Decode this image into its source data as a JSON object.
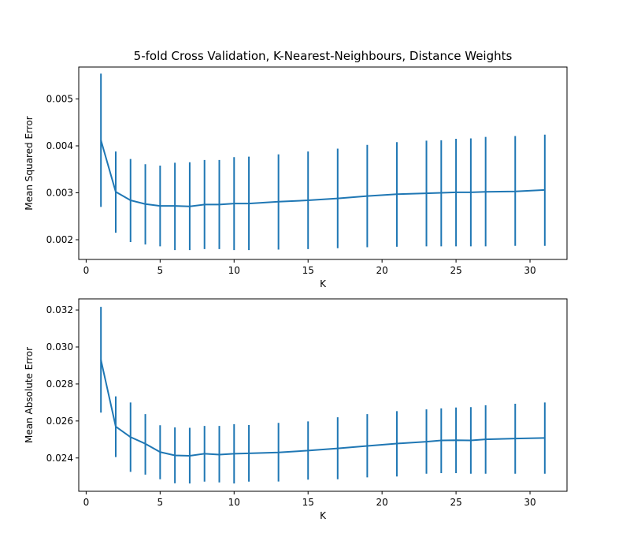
{
  "figure_title": "5-fold Cross Validation, K-Nearest-Neighbours, Distance Weights",
  "colors": {
    "series": "#1f77b4",
    "axes": "#000000",
    "background": "#ffffff"
  },
  "chart_data": [
    {
      "type": "line",
      "subtype": "errorbar",
      "title": "5-fold Cross Validation, K-Nearest-Neighbours, Distance Weights",
      "xlabel": "K",
      "ylabel": "Mean Squared Error",
      "xlim": [
        -0.5,
        32.5
      ],
      "ylim": [
        0.00158,
        0.00568
      ],
      "xticks": [
        0,
        5,
        10,
        15,
        20,
        25,
        30
      ],
      "xtick_labels": [
        "0",
        "5",
        "10",
        "15",
        "20",
        "25",
        "30"
      ],
      "yticks": [
        0.002,
        0.003,
        0.004,
        0.005
      ],
      "ytick_labels": [
        "0.002",
        "0.003",
        "0.004",
        "0.005"
      ],
      "grid": false,
      "series": [
        {
          "name": "MSE",
          "x": [
            1,
            2,
            3,
            4,
            5,
            6,
            7,
            8,
            9,
            10,
            11,
            13,
            15,
            17,
            19,
            21,
            23,
            24,
            25,
            26,
            27,
            29,
            31
          ],
          "y": [
            0.00412,
            0.00302,
            0.00284,
            0.00276,
            0.00272,
            0.00272,
            0.00271,
            0.00275,
            0.00275,
            0.00277,
            0.00277,
            0.00281,
            0.00284,
            0.00288,
            0.00293,
            0.00297,
            0.00299,
            0.003,
            0.00301,
            0.00301,
            0.00302,
            0.00303,
            0.00306
          ],
          "err_low": [
            0.0027,
            0.00215,
            0.00195,
            0.0019,
            0.00186,
            0.00178,
            0.00178,
            0.0018,
            0.0018,
            0.00178,
            0.00178,
            0.00179,
            0.0018,
            0.00182,
            0.00184,
            0.00185,
            0.00186,
            0.00186,
            0.00186,
            0.00186,
            0.00186,
            0.00187,
            0.00187
          ],
          "err_high": [
            0.00554,
            0.00388,
            0.00372,
            0.00361,
            0.00358,
            0.00364,
            0.00365,
            0.0037,
            0.0037,
            0.00376,
            0.00377,
            0.00382,
            0.00388,
            0.00394,
            0.00402,
            0.00408,
            0.00411,
            0.00412,
            0.00415,
            0.00416,
            0.00419,
            0.00421,
            0.00424
          ]
        }
      ]
    },
    {
      "type": "line",
      "subtype": "errorbar",
      "title": "",
      "xlabel": "K",
      "ylabel": "Mean Absolute Error",
      "xlim": [
        -0.5,
        32.5
      ],
      "ylim": [
        0.0222,
        0.0326
      ],
      "xticks": [
        0,
        5,
        10,
        15,
        20,
        25,
        30
      ],
      "xtick_labels": [
        "0",
        "5",
        "10",
        "15",
        "20",
        "25",
        "30"
      ],
      "yticks": [
        0.024,
        0.026,
        0.028,
        0.03,
        0.032
      ],
      "ytick_labels": [
        "0.024",
        "0.026",
        "0.028",
        "0.030",
        "0.032"
      ],
      "grid": false,
      "series": [
        {
          "name": "MAE",
          "x": [
            1,
            2,
            3,
            4,
            5,
            6,
            7,
            8,
            9,
            10,
            11,
            13,
            15,
            17,
            19,
            21,
            23,
            24,
            25,
            26,
            27,
            29,
            31
          ],
          "y": [
            0.0293,
            0.0257,
            0.02513,
            0.02477,
            0.02432,
            0.02414,
            0.02412,
            0.02423,
            0.02418,
            0.02423,
            0.02425,
            0.0243,
            0.0244,
            0.02452,
            0.02465,
            0.02478,
            0.02488,
            0.02495,
            0.02496,
            0.02495,
            0.02501,
            0.02505,
            0.02508
          ],
          "err_low": [
            0.02645,
            0.02405,
            0.02325,
            0.0231,
            0.02285,
            0.02263,
            0.02262,
            0.02272,
            0.02268,
            0.02262,
            0.02272,
            0.02273,
            0.02283,
            0.02285,
            0.02295,
            0.023,
            0.02315,
            0.02318,
            0.02318,
            0.02315,
            0.02315,
            0.02315,
            0.02315
          ],
          "err_high": [
            0.03217,
            0.02733,
            0.027,
            0.02637,
            0.02577,
            0.02565,
            0.02563,
            0.02573,
            0.02573,
            0.02583,
            0.02578,
            0.0259,
            0.02598,
            0.0262,
            0.02637,
            0.02653,
            0.02663,
            0.02668,
            0.02673,
            0.02675,
            0.02685,
            0.02693,
            0.027
          ]
        }
      ]
    }
  ]
}
